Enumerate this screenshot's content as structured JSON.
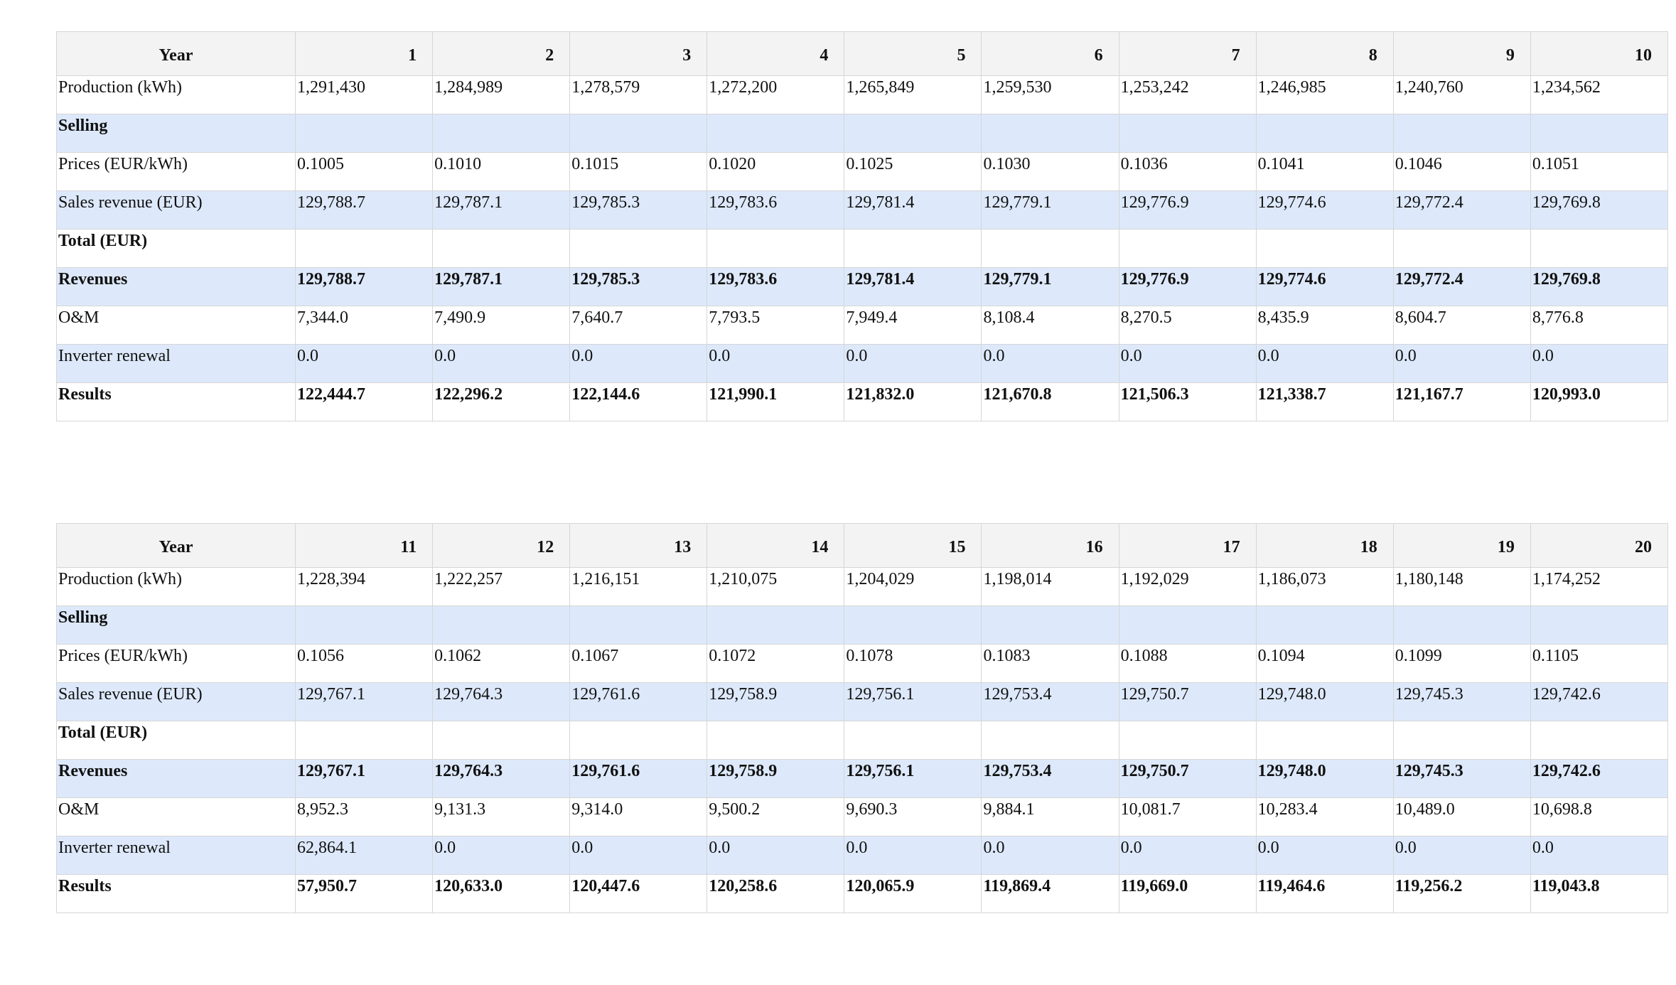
{
  "tables": [
    {
      "header_label": "Year",
      "years": [
        "1",
        "2",
        "3",
        "4",
        "5",
        "6",
        "7",
        "8",
        "9",
        "10"
      ],
      "rows": [
        {
          "label": "Production (kWh)",
          "values": [
            "1,291,430",
            "1,284,989",
            "1,278,579",
            "1,272,200",
            "1,265,849",
            "1,259,530",
            "1,253,242",
            "1,246,985",
            "1,240,760",
            "1,234,562"
          ]
        },
        {
          "label": "Selling",
          "values": [
            "",
            "",
            "",
            "",
            "",
            "",
            "",
            "",
            "",
            ""
          ]
        },
        {
          "label": "Prices (EUR/kWh)",
          "values": [
            "0.1005",
            "0.1010",
            "0.1015",
            "0.1020",
            "0.1025",
            "0.1030",
            "0.1036",
            "0.1041",
            "0.1046",
            "0.1051"
          ]
        },
        {
          "label": "Sales revenue (EUR)",
          "values": [
            "129,788.7",
            "129,787.1",
            "129,785.3",
            "129,783.6",
            "129,781.4",
            "129,779.1",
            "129,776.9",
            "129,774.6",
            "129,772.4",
            "129,769.8"
          ]
        },
        {
          "label": "Total (EUR)",
          "values": [
            "",
            "",
            "",
            "",
            "",
            "",
            "",
            "",
            "",
            ""
          ]
        },
        {
          "label": "Revenues",
          "values": [
            "129,788.7",
            "129,787.1",
            "129,785.3",
            "129,783.6",
            "129,781.4",
            "129,779.1",
            "129,776.9",
            "129,774.6",
            "129,772.4",
            "129,769.8"
          ]
        },
        {
          "label": "O&M",
          "values": [
            "7,344.0",
            "7,490.9",
            "7,640.7",
            "7,793.5",
            "7,949.4",
            "8,108.4",
            "8,270.5",
            "8,435.9",
            "8,604.7",
            "8,776.8"
          ]
        },
        {
          "label": "Inverter renewal",
          "values": [
            "0.0",
            "0.0",
            "0.0",
            "0.0",
            "0.0",
            "0.0",
            "0.0",
            "0.0",
            "0.0",
            "0.0"
          ]
        },
        {
          "label": "Results",
          "values": [
            "122,444.7",
            "122,296.2",
            "122,144.6",
            "121,990.1",
            "121,832.0",
            "121,670.8",
            "121,506.3",
            "121,338.7",
            "121,167.7",
            "120,993.0"
          ]
        }
      ]
    },
    {
      "header_label": "Year",
      "years": [
        "11",
        "12",
        "13",
        "14",
        "15",
        "16",
        "17",
        "18",
        "19",
        "20"
      ],
      "rows": [
        {
          "label": "Production (kWh)",
          "values": [
            "1,228,394",
            "1,222,257",
            "1,216,151",
            "1,210,075",
            "1,204,029",
            "1,198,014",
            "1,192,029",
            "1,186,073",
            "1,180,148",
            "1,174,252"
          ]
        },
        {
          "label": "Selling",
          "values": [
            "",
            "",
            "",
            "",
            "",
            "",
            "",
            "",
            "",
            ""
          ]
        },
        {
          "label": "Prices (EUR/kWh)",
          "values": [
            "0.1056",
            "0.1062",
            "0.1067",
            "0.1072",
            "0.1078",
            "0.1083",
            "0.1088",
            "0.1094",
            "0.1099",
            "0.1105"
          ]
        },
        {
          "label": "Sales revenue (EUR)",
          "values": [
            "129,767.1",
            "129,764.3",
            "129,761.6",
            "129,758.9",
            "129,756.1",
            "129,753.4",
            "129,750.7",
            "129,748.0",
            "129,745.3",
            "129,742.6"
          ]
        },
        {
          "label": "Total (EUR)",
          "values": [
            "",
            "",
            "",
            "",
            "",
            "",
            "",
            "",
            "",
            ""
          ]
        },
        {
          "label": "Revenues",
          "values": [
            "129,767.1",
            "129,764.3",
            "129,761.6",
            "129,758.9",
            "129,756.1",
            "129,753.4",
            "129,750.7",
            "129,748.0",
            "129,745.3",
            "129,742.6"
          ]
        },
        {
          "label": "O&M",
          "values": [
            "8,952.3",
            "9,131.3",
            "9,314.0",
            "9,500.2",
            "9,690.3",
            "9,884.1",
            "10,081.7",
            "10,283.4",
            "10,489.0",
            "10,698.8"
          ]
        },
        {
          "label": "Inverter renewal",
          "values": [
            "62,864.1",
            "0.0",
            "0.0",
            "0.0",
            "0.0",
            "0.0",
            "0.0",
            "0.0",
            "0.0",
            "0.0"
          ]
        },
        {
          "label": "Results",
          "values": [
            "57,950.7",
            "120,633.0",
            "120,447.6",
            "120,258.6",
            "120,065.9",
            "119,869.4",
            "119,669.0",
            "119,464.6",
            "119,256.2",
            "119,043.8"
          ]
        }
      ]
    }
  ]
}
